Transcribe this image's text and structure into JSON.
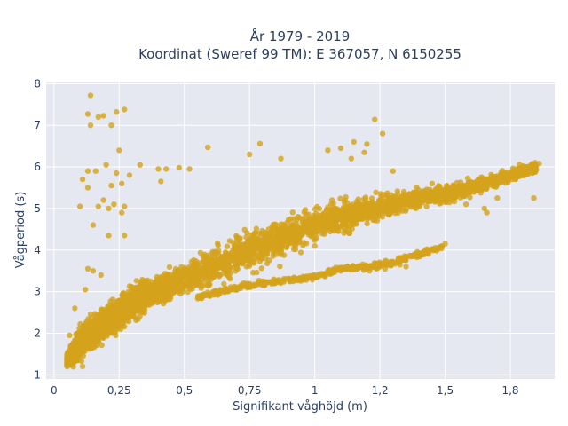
{
  "chart_data": {
    "type": "scatter",
    "title_line1": "År 1979 - 2019",
    "title_line2": "Koordinat (Sweref 99 TM): E 367057, N 6150255",
    "xlabel": "Signifikant våghöjd (m)",
    "ylabel": "Vågperiod (s)",
    "xlim": [
      -0.03,
      1.92
    ],
    "ylim": [
      0.9,
      8.05
    ],
    "x_ticks": [
      0,
      0.25,
      0.5,
      0.75,
      1,
      1.25,
      1.5,
      1.75
    ],
    "x_tick_labels": [
      "0",
      "0,25",
      "0,5",
      "0,75",
      "1",
      "1,2",
      "1,5",
      "1,8"
    ],
    "y_ticks": [
      1,
      2,
      3,
      4,
      5,
      6,
      7,
      8
    ],
    "y_tick_labels": [
      "1",
      "2",
      "3",
      "4",
      "5",
      "6",
      "7",
      "8"
    ],
    "grid": true,
    "colors": {
      "marker": "#d4a21c",
      "plot_bg": "#e5e8f0",
      "grid": "#ffffff",
      "text": "#2a3f5f"
    },
    "series": [
      {
        "trend": [
          [
            0.05,
            1.35
          ],
          [
            0.1,
            1.75
          ],
          [
            0.2,
            2.3
          ],
          [
            0.3,
            2.75
          ],
          [
            0.4,
            3.05
          ],
          [
            0.5,
            3.3
          ],
          [
            0.6,
            3.6
          ],
          [
            0.7,
            3.85
          ],
          [
            0.8,
            4.1
          ],
          [
            0.9,
            4.35
          ],
          [
            1.0,
            4.6
          ],
          [
            1.1,
            4.8
          ],
          [
            1.2,
            4.95
          ],
          [
            1.3,
            5.1
          ],
          [
            1.4,
            5.25
          ],
          [
            1.5,
            5.35
          ],
          [
            1.6,
            5.5
          ],
          [
            1.7,
            5.7
          ],
          [
            1.8,
            5.9
          ],
          [
            1.86,
            6.02
          ]
        ],
        "spread": [
          [
            0.05,
            0.35
          ],
          [
            0.1,
            0.9
          ],
          [
            0.2,
            0.95
          ],
          [
            0.3,
            0.9
          ],
          [
            0.4,
            0.85
          ],
          [
            0.5,
            0.9
          ],
          [
            0.6,
            1.0
          ],
          [
            0.7,
            1.1
          ],
          [
            0.8,
            1.1
          ],
          [
            0.9,
            1.05
          ],
          [
            1.0,
            0.95
          ],
          [
            1.2,
            0.8
          ],
          [
            1.4,
            0.6
          ],
          [
            1.6,
            0.45
          ],
          [
            1.8,
            0.3
          ]
        ],
        "lower_band": [
          [
            0.55,
            2.85
          ],
          [
            0.7,
            3.1
          ],
          [
            0.8,
            3.2
          ],
          [
            0.9,
            3.28
          ],
          [
            1.0,
            3.35
          ],
          [
            1.1,
            3.55
          ],
          [
            1.2,
            3.6
          ],
          [
            1.3,
            3.7
          ],
          [
            1.4,
            3.9
          ],
          [
            1.5,
            4.1
          ]
        ],
        "outliers": [
          [
            0.14,
            7.72
          ],
          [
            0.13,
            7.27
          ],
          [
            0.17,
            7.2
          ],
          [
            0.19,
            7.23
          ],
          [
            0.24,
            7.32
          ],
          [
            0.27,
            7.38
          ],
          [
            0.14,
            7.0
          ],
          [
            0.22,
            7.0
          ],
          [
            0.11,
            5.7
          ],
          [
            0.13,
            5.9
          ],
          [
            0.16,
            5.9
          ],
          [
            0.2,
            6.05
          ],
          [
            0.24,
            5.85
          ],
          [
            0.25,
            6.4
          ],
          [
            0.29,
            5.8
          ],
          [
            0.33,
            6.05
          ],
          [
            0.26,
            5.6
          ],
          [
            0.22,
            5.55
          ],
          [
            0.17,
            5.05
          ],
          [
            0.19,
            5.2
          ],
          [
            0.21,
            5.0
          ],
          [
            0.23,
            5.1
          ],
          [
            0.27,
            5.05
          ],
          [
            0.26,
            4.9
          ],
          [
            0.15,
            4.6
          ],
          [
            0.21,
            4.35
          ],
          [
            0.27,
            4.35
          ],
          [
            0.4,
            5.95
          ],
          [
            0.43,
            5.95
          ],
          [
            0.41,
            5.65
          ],
          [
            0.48,
            5.98
          ],
          [
            0.52,
            5.95
          ],
          [
            0.13,
            3.55
          ],
          [
            0.15,
            3.5
          ],
          [
            0.18,
            3.4
          ],
          [
            0.1,
            5.05
          ],
          [
            0.13,
            5.5
          ],
          [
            0.59,
            6.47
          ],
          [
            0.79,
            6.56
          ],
          [
            0.75,
            6.3
          ],
          [
            0.87,
            6.2
          ],
          [
            1.05,
            6.4
          ],
          [
            1.1,
            6.45
          ],
          [
            1.15,
            6.6
          ],
          [
            1.2,
            6.55
          ],
          [
            1.23,
            7.14
          ],
          [
            1.26,
            6.8
          ],
          [
            1.19,
            6.35
          ],
          [
            1.14,
            6.2
          ],
          [
            1.3,
            5.9
          ],
          [
            1.45,
            5.6
          ],
          [
            1.4,
            3.85
          ],
          [
            1.35,
            3.6
          ],
          [
            1.27,
            3.55
          ],
          [
            1.21,
            3.5
          ],
          [
            1.16,
            3.55
          ],
          [
            1.1,
            3.5
          ],
          [
            1.5,
            4.15
          ],
          [
            1.66,
            4.9
          ],
          [
            1.77,
            5.7
          ],
          [
            1.86,
            6.08
          ],
          [
            1.84,
            5.25
          ],
          [
            1.7,
            5.25
          ],
          [
            1.65,
            5.0
          ],
          [
            1.58,
            5.1
          ],
          [
            0.05,
            1.4
          ],
          [
            0.06,
            1.95
          ],
          [
            0.08,
            2.6
          ],
          [
            0.11,
            1.2
          ],
          [
            0.12,
            3.05
          ]
        ]
      }
    ]
  }
}
